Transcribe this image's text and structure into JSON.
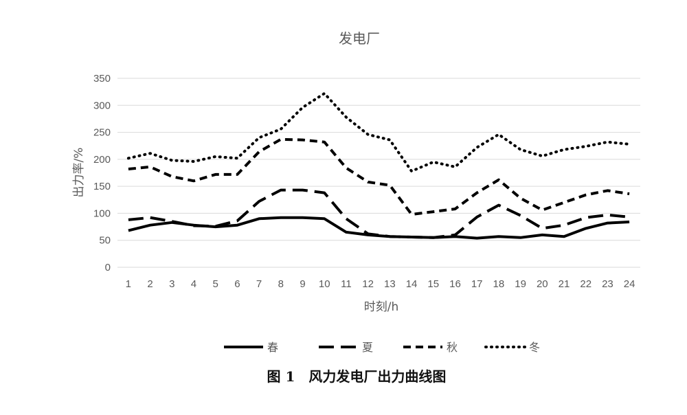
{
  "chart_data": {
    "type": "line",
    "title": "发电厂",
    "xlabel": "时刻/h",
    "ylabel": "出力率/%",
    "categories": [
      "1",
      "2",
      "3",
      "4",
      "5",
      "6",
      "7",
      "8",
      "9",
      "10",
      "11",
      "12",
      "13",
      "14",
      "15",
      "16",
      "17",
      "18",
      "19",
      "20",
      "21",
      "22",
      "23",
      "24"
    ],
    "ylim": [
      0,
      350
    ],
    "yticks": [
      0,
      50,
      100,
      150,
      200,
      250,
      300,
      350
    ],
    "grid": true,
    "legend_position": "bottom",
    "series": [
      {
        "name": "春",
        "style": "solid",
        "values": [
          68,
          78,
          83,
          78,
          75,
          78,
          90,
          92,
          92,
          90,
          65,
          60,
          57,
          56,
          55,
          57,
          54,
          57,
          55,
          60,
          57,
          72,
          82,
          84
        ]
      },
      {
        "name": "夏",
        "style": "long-dash",
        "values": [
          88,
          92,
          85,
          77,
          76,
          86,
          122,
          143,
          143,
          138,
          90,
          62,
          57,
          56,
          55,
          60,
          93,
          115,
          96,
          72,
          78,
          92,
          97,
          93
        ]
      },
      {
        "name": "秋",
        "style": "dash",
        "values": [
          182,
          186,
          168,
          160,
          172,
          172,
          214,
          237,
          236,
          232,
          184,
          158,
          152,
          98,
          103,
          108,
          138,
          162,
          128,
          106,
          120,
          134,
          142,
          136
        ]
      },
      {
        "name": "冬",
        "style": "dot",
        "values": [
          202,
          211,
          198,
          196,
          205,
          202,
          240,
          256,
          296,
          322,
          278,
          246,
          236,
          178,
          195,
          186,
          222,
          246,
          218,
          206,
          218,
          224,
          232,
          228
        ]
      }
    ]
  },
  "caption": "图 1　风力发电厂出力曲线图",
  "colors": {
    "line": "#000000",
    "grid": "#d9d9d9",
    "text": "#595959"
  }
}
